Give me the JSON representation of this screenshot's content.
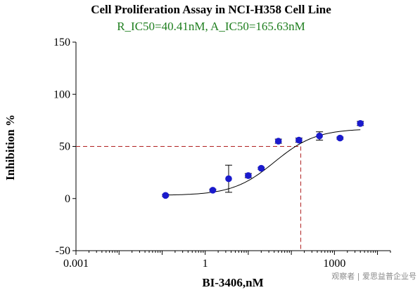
{
  "chart_data": {
    "type": "scatter",
    "title": "Cell Proliferation Assay in NCI-H358  Cell Line",
    "subtitle": "R_IC50=40.41nM, A_IC50=165.63nM",
    "xlabel": "BI-3406,nM",
    "ylabel": "Inhibition %",
    "x_scale": "log10",
    "xlim": [
      0.001,
      20000
    ],
    "ylim": [
      -50,
      150
    ],
    "x_ticks": [
      {
        "value": 0.001,
        "label": "0.001"
      },
      {
        "value": 1,
        "label": "1"
      },
      {
        "value": 1000,
        "label": "1000"
      }
    ],
    "y_ticks": [
      {
        "value": -50,
        "label": "-50"
      },
      {
        "value": 0,
        "label": "0"
      },
      {
        "value": 50,
        "label": "50"
      },
      {
        "value": 100,
        "label": "100"
      },
      {
        "value": 150,
        "label": "150"
      }
    ],
    "grid": false,
    "series": [
      {
        "x": [
          0.12,
          1.5,
          3.5,
          10,
          20,
          50,
          150,
          450,
          1350,
          4000
        ],
        "y": [
          3,
          8,
          19,
          22,
          29,
          55,
          56,
          60,
          58,
          72
        ],
        "error": [
          1,
          1,
          13,
          2,
          1,
          2,
          2,
          4,
          1,
          2
        ]
      }
    ],
    "fit_curve": {
      "bottom": 3,
      "top": 67,
      "ic50": 40.41,
      "hill": 0.9
    },
    "reference": {
      "y": 50,
      "x": 165.63
    }
  },
  "colors": {
    "marker": "#1a1acc",
    "reference_line": "#b02020",
    "subtitle": "#1e7e1e",
    "curve": "#000000"
  },
  "watermark": "观察者 | 爱思益普企业号"
}
